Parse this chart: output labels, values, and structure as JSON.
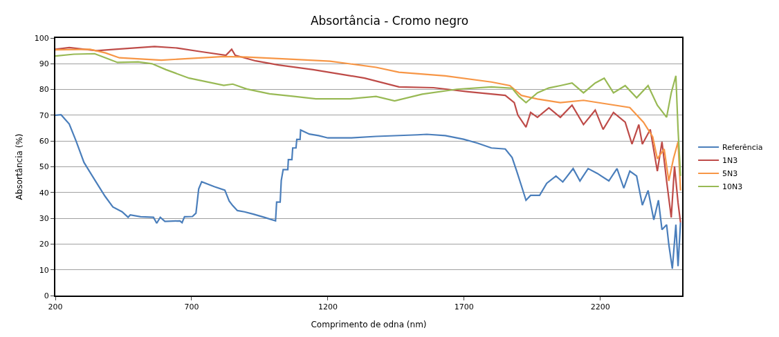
{
  "chart_data": {
    "type": "line",
    "title": "Absortância - Cromo negro",
    "xlabel": "Comprimento de odna (nm)",
    "ylabel": "Absortância (%)",
    "xlim": [
      200,
      2500
    ],
    "xticks": [
      200,
      700,
      1200,
      1700,
      2200
    ],
    "ylim": [
      0,
      100
    ],
    "yticks": [
      0,
      10,
      20,
      30,
      40,
      50,
      60,
      70,
      80,
      90,
      100
    ],
    "grid": "y",
    "legend": "right",
    "marker": "none",
    "line_style": "solid",
    "series": [
      {
        "name": "Referência",
        "color": "#4a7ebb",
        "x": [
          200,
          221,
          251,
          276,
          305,
          344,
          382,
          411,
          445,
          467,
          475,
          513,
          560,
          572,
          585,
          602,
          657,
          665,
          674,
          703,
          716,
          726,
          737,
          783,
          822,
          838,
          851,
          868,
          894,
          927,
          966,
          1008,
          1012,
          1025,
          1029,
          1036,
          1053,
          1055,
          1068,
          1071,
          1083,
          1086,
          1098,
          1100,
          1132,
          1166,
          1200,
          1285,
          1377,
          1529,
          1563,
          1631,
          1698,
          1749,
          1800,
          1851,
          1876,
          1893,
          1910,
          1927,
          1944,
          1977,
          2003,
          2037,
          2062,
          2100,
          2125,
          2155,
          2189,
          2231,
          2261,
          2286,
          2308,
          2333,
          2354,
          2375,
          2396,
          2413,
          2426,
          2443,
          2451,
          2464,
          2477,
          2485,
          2494
        ],
        "values": [
          70,
          70.2,
          66.6,
          60,
          51.7,
          45,
          38.6,
          34.4,
          32.5,
          30.4,
          31.3,
          30.6,
          30.4,
          28.1,
          30.4,
          28.8,
          29,
          28.3,
          30.6,
          30.7,
          32,
          41.4,
          44.2,
          42.3,
          40.9,
          36.7,
          34.9,
          33,
          32.5,
          31.6,
          30.4,
          29,
          36.3,
          36.3,
          44.7,
          48.9,
          48.9,
          52.8,
          52.8,
          57.3,
          57.3,
          60.6,
          60.6,
          64.3,
          62.7,
          62.1,
          61.2,
          61.2,
          61.8,
          62.4,
          62.6,
          62.1,
          60.7,
          59.2,
          57.3,
          56.9,
          53.6,
          48.3,
          42.7,
          37,
          38.9,
          38.9,
          43.6,
          46.4,
          44.1,
          49.3,
          44.5,
          49.3,
          47.4,
          44.5,
          49.3,
          41.7,
          48.3,
          46.4,
          35.1,
          40.8,
          29.4,
          37,
          25.6,
          27.5,
          19.9,
          10.4,
          27.5,
          11.4,
          28.4
        ]
      },
      {
        "name": "1N3",
        "color": "#be4b48",
        "x": [
          200,
          251,
          352,
          420,
          564,
          648,
          733,
          826,
          847,
          860,
          935,
          1019,
          1146,
          1273,
          1335,
          1461,
          1588,
          1715,
          1851,
          1884,
          1897,
          1927,
          1944,
          1969,
          2011,
          2053,
          2096,
          2138,
          2181,
          2210,
          2248,
          2291,
          2316,
          2341,
          2354,
          2383,
          2409,
          2426,
          2443,
          2460,
          2472,
          2485,
          2494
        ],
        "values": [
          95.6,
          96.3,
          95.1,
          95.6,
          96.7,
          96.1,
          94.7,
          93.3,
          95.6,
          93.3,
          91.1,
          89.5,
          87.7,
          85.5,
          84.4,
          81,
          80.7,
          79.1,
          77.7,
          74.9,
          70.1,
          65.4,
          71.1,
          69.2,
          72.9,
          69.2,
          73.9,
          66.4,
          72,
          64.5,
          71.1,
          67.3,
          58.8,
          66.4,
          58.8,
          64.5,
          48.3,
          59.7,
          44.5,
          30.3,
          50.2,
          36,
          28.4
        ]
      },
      {
        "name": "5N3",
        "color": "#f79646",
        "x": [
          200,
          327,
          384,
          435,
          589,
          818,
          902,
          1072,
          1208,
          1377,
          1461,
          1631,
          1800,
          1868,
          1910,
          1969,
          2053,
          2138,
          2223,
          2308,
          2358,
          2392,
          2409,
          2434,
          2451,
          2468,
          2485,
          2494
        ],
        "values": [
          95.4,
          95.6,
          94.2,
          92.3,
          91.4,
          92.8,
          92.6,
          91.7,
          91,
          88.6,
          86.7,
          85.3,
          82.9,
          81.5,
          77.7,
          76.3,
          74.9,
          75.8,
          74.4,
          73,
          67.3,
          61.6,
          53.1,
          56.9,
          44.5,
          53.1,
          59.7,
          40.8
        ]
      },
      {
        "name": "10N3",
        "color": "#98b954",
        "x": [
          200,
          268,
          344,
          384,
          428,
          504,
          555,
          606,
          691,
          818,
          851,
          902,
          986,
          1071,
          1156,
          1283,
          1377,
          1445,
          1546,
          1673,
          1800,
          1876,
          1901,
          1927,
          1969,
          2011,
          2053,
          2096,
          2138,
          2181,
          2214,
          2248,
          2291,
          2333,
          2375,
          2409,
          2443,
          2460,
          2477,
          2485,
          2494
        ],
        "values": [
          93,
          93.7,
          93.9,
          92.3,
          90.5,
          90.7,
          90,
          87.7,
          84.4,
          81.6,
          82.1,
          80.2,
          78.3,
          77.4,
          76.4,
          76.4,
          77.3,
          75.6,
          78.2,
          80.1,
          81,
          80.5,
          77.3,
          74.9,
          78.7,
          80.6,
          81.5,
          82.5,
          78.7,
          82.5,
          84.4,
          78.7,
          81.5,
          76.8,
          81.5,
          73.9,
          69.2,
          78.7,
          85.3,
          64.5,
          46.4
        ]
      }
    ]
  }
}
